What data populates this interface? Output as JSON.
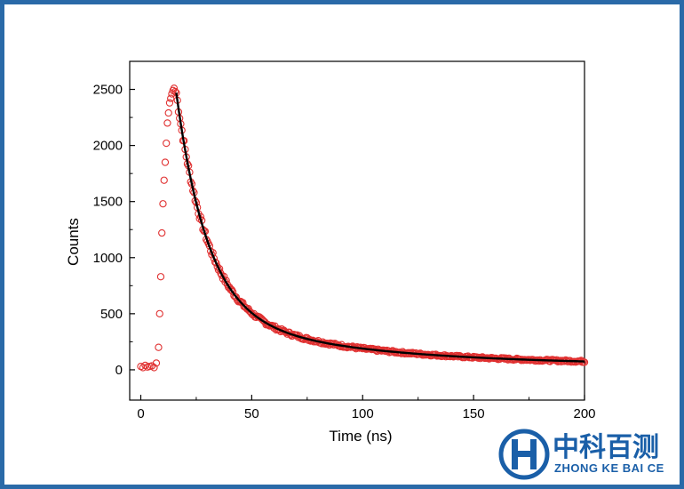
{
  "chart_data": {
    "type": "scatter",
    "title": "",
    "xlabel": "Time (ns)",
    "ylabel": "Counts",
    "xlim": [
      -5,
      200
    ],
    "ylim": [
      -270,
      2750
    ],
    "xticks": [
      0,
      50,
      100,
      150,
      200
    ],
    "yticks": [
      0,
      500,
      1000,
      1500,
      2000,
      2500
    ],
    "grid": false,
    "marker_color": "#e03030",
    "fit_color": "#000000",
    "series": [
      {
        "kind": "points",
        "marker": "open-circle",
        "rise_x": [
          0,
          1,
          2,
          3,
          4,
          5,
          6,
          7,
          8,
          8.5,
          9,
          9.5,
          10,
          10.5,
          11,
          11.5,
          12,
          12.5,
          13,
          13.5,
          14,
          14.5,
          15,
          15.5
        ],
        "rise_y": [
          30,
          20,
          40,
          25,
          30,
          35,
          20,
          60,
          200,
          500,
          830,
          1220,
          1480,
          1690,
          1850,
          2020,
          2200,
          2290,
          2380,
          2420,
          2460,
          2490,
          2510,
          2480
        ],
        "decay_model": {
          "x_start": 16,
          "x_end": 200,
          "step": 0.5,
          "baseline": 40,
          "components": [
            {
              "amplitude": 1950,
              "tau": 14
            },
            {
              "amplitude": 480,
              "tau": 70
            }
          ]
        }
      },
      {
        "kind": "line",
        "x_start": 16,
        "x_end": 200,
        "step": 1
      }
    ]
  },
  "logo": {
    "cn_text": "中科百测",
    "en_text": "ZHONG KE BAI CE",
    "color": "#1a5fa8"
  }
}
